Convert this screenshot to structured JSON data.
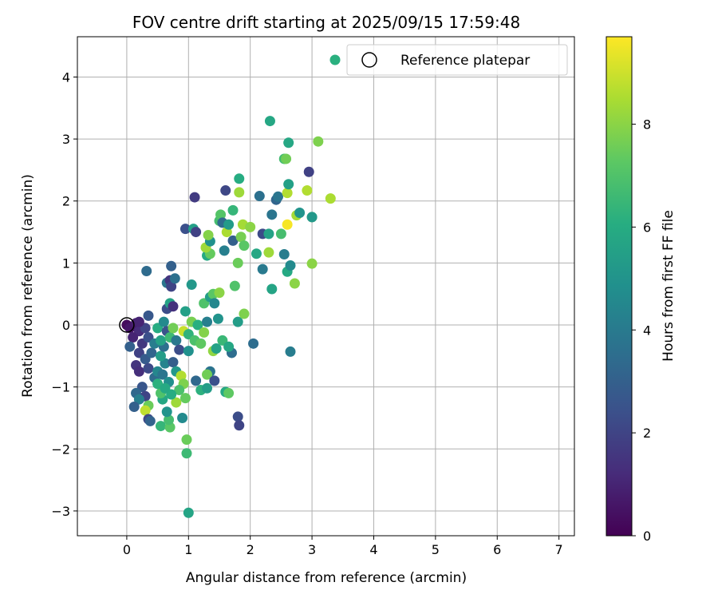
{
  "chart_data": {
    "type": "scatter",
    "title": "FOV centre drift starting at 2025/09/15 17:59:48",
    "xlabel": "Angular distance from reference (arcmin)",
    "ylabel": "Rotation from reference (arcmin)",
    "xlim": [
      -0.8,
      7.25
    ],
    "ylim": [
      -3.4,
      4.65
    ],
    "xticks": [
      0,
      1,
      2,
      3,
      4,
      5,
      6,
      7
    ],
    "yticks": [
      -3,
      -2,
      -1,
      0,
      1,
      2,
      3,
      4
    ],
    "grid": true,
    "legend": {
      "position": "top-right",
      "entries": [
        {
          "label": "",
          "marker": "filled-circle",
          "color": "#2ab07f"
        },
        {
          "label": "Reference platepar",
          "marker": "open-circle",
          "color": "#000000"
        }
      ]
    },
    "colorbar": {
      "label": "Hours from first FF file",
      "colormap": "viridis",
      "range": [
        0,
        9.7
      ],
      "ticks": [
        0,
        2,
        4,
        6,
        8
      ]
    },
    "reference_point": {
      "x": 0,
      "y": 0
    },
    "points": [
      {
        "x": 0.0,
        "y": 0.0,
        "c": 0.3
      },
      {
        "x": 0.05,
        "y": -0.05,
        "c": 0.6
      },
      {
        "x": 0.15,
        "y": 0.03,
        "c": 0.8
      },
      {
        "x": 0.2,
        "y": -0.1,
        "c": 1.2
      },
      {
        "x": 0.1,
        "y": -0.2,
        "c": 1.0
      },
      {
        "x": 0.25,
        "y": -0.3,
        "c": 1.6
      },
      {
        "x": 0.05,
        "y": -0.35,
        "c": 3.0
      },
      {
        "x": 0.3,
        "y": -0.05,
        "c": 2.0
      },
      {
        "x": 0.35,
        "y": -0.2,
        "c": 2.4
      },
      {
        "x": 0.2,
        "y": -0.45,
        "c": 1.9
      },
      {
        "x": 0.3,
        "y": -0.55,
        "c": 2.8
      },
      {
        "x": 0.4,
        "y": -0.45,
        "c": 3.2
      },
      {
        "x": 0.15,
        "y": -0.65,
        "c": 1.5
      },
      {
        "x": 0.2,
        "y": -0.75,
        "c": 1.3
      },
      {
        "x": 0.35,
        "y": -0.7,
        "c": 2.2
      },
      {
        "x": 0.45,
        "y": -0.85,
        "c": 3.4
      },
      {
        "x": 0.25,
        "y": -1.0,
        "c": 2.6
      },
      {
        "x": 0.15,
        "y": -1.1,
        "c": 3.3
      },
      {
        "x": 0.3,
        "y": -1.15,
        "c": 2.0
      },
      {
        "x": 0.2,
        "y": -1.2,
        "c": 4.2
      },
      {
        "x": 0.12,
        "y": -1.32,
        "c": 3.0
      },
      {
        "x": 0.35,
        "y": -1.3,
        "c": 7.5
      },
      {
        "x": 0.3,
        "y": -1.38,
        "c": 8.8
      },
      {
        "x": 0.35,
        "y": -1.52,
        "c": 2.1
      },
      {
        "x": 0.38,
        "y": -1.55,
        "c": 3.1
      },
      {
        "x": 0.55,
        "y": -1.63,
        "c": 6.4
      },
      {
        "x": 0.7,
        "y": -1.65,
        "c": 7.2
      },
      {
        "x": 0.68,
        "y": -1.53,
        "c": 6.8
      },
      {
        "x": 0.65,
        "y": -1.4,
        "c": 5.0
      },
      {
        "x": 0.58,
        "y": -1.2,
        "c": 5.8
      },
      {
        "x": 0.55,
        "y": -1.1,
        "c": 7.0
      },
      {
        "x": 0.5,
        "y": -0.95,
        "c": 6.2
      },
      {
        "x": 0.5,
        "y": -0.75,
        "c": 4.5
      },
      {
        "x": 0.58,
        "y": -0.8,
        "c": 3.8
      },
      {
        "x": 0.62,
        "y": -0.62,
        "c": 4.4
      },
      {
        "x": 0.55,
        "y": -0.5,
        "c": 5.4
      },
      {
        "x": 0.6,
        "y": -0.35,
        "c": 3.6
      },
      {
        "x": 0.45,
        "y": -0.3,
        "c": 4.1
      },
      {
        "x": 0.55,
        "y": -0.25,
        "c": 5.6
      },
      {
        "x": 0.5,
        "y": -0.05,
        "c": 6.0
      },
      {
        "x": 0.6,
        "y": 0.05,
        "c": 4.6
      },
      {
        "x": 0.65,
        "y": -0.1,
        "c": 2.5
      },
      {
        "x": 0.7,
        "y": -0.2,
        "c": 6.6
      },
      {
        "x": 0.75,
        "y": -0.05,
        "c": 7.6
      },
      {
        "x": 0.8,
        "y": -0.25,
        "c": 3.9
      },
      {
        "x": 0.85,
        "y": -0.4,
        "c": 2.3
      },
      {
        "x": 0.75,
        "y": -0.6,
        "c": 2.9
      },
      {
        "x": 0.8,
        "y": -0.75,
        "c": 5.2
      },
      {
        "x": 0.88,
        "y": -0.82,
        "c": 8.6
      },
      {
        "x": 0.92,
        "y": -0.95,
        "c": 7.8
      },
      {
        "x": 0.85,
        "y": -1.05,
        "c": 6.9
      },
      {
        "x": 0.8,
        "y": -1.25,
        "c": 8.3
      },
      {
        "x": 0.95,
        "y": -1.18,
        "c": 7.4
      },
      {
        "x": 0.72,
        "y": -1.12,
        "c": 6.0
      },
      {
        "x": 0.68,
        "y": -0.92,
        "c": 4.8
      },
      {
        "x": 0.62,
        "y": -1.02,
        "c": 5.9
      },
      {
        "x": 0.9,
        "y": -1.5,
        "c": 4.6
      },
      {
        "x": 0.97,
        "y": -1.85,
        "c": 7.5
      },
      {
        "x": 0.97,
        "y": -2.07,
        "c": 6.6
      },
      {
        "x": 1.0,
        "y": -3.03,
        "c": 5.7
      },
      {
        "x": 0.92,
        "y": -0.1,
        "c": 8.9
      },
      {
        "x": 0.95,
        "y": 0.22,
        "c": 5.5
      },
      {
        "x": 1.0,
        "y": -0.15,
        "c": 6.3
      },
      {
        "x": 1.05,
        "y": 0.05,
        "c": 7.7
      },
      {
        "x": 1.0,
        "y": -0.42,
        "c": 4.9
      },
      {
        "x": 1.1,
        "y": -0.25,
        "c": 6.9
      },
      {
        "x": 1.2,
        "y": -0.3,
        "c": 7.3
      },
      {
        "x": 1.15,
        "y": 0.0,
        "c": 6.1
      },
      {
        "x": 1.25,
        "y": -0.12,
        "c": 7.9
      },
      {
        "x": 1.3,
        "y": 0.05,
        "c": 4.2
      },
      {
        "x": 1.4,
        "y": -0.42,
        "c": 8.1
      },
      {
        "x": 1.45,
        "y": -0.38,
        "c": 5.6
      },
      {
        "x": 1.48,
        "y": 0.1,
        "c": 5.0
      },
      {
        "x": 1.55,
        "y": -0.25,
        "c": 6.5
      },
      {
        "x": 1.35,
        "y": -0.75,
        "c": 3.7
      },
      {
        "x": 1.3,
        "y": -0.8,
        "c": 7.6
      },
      {
        "x": 1.2,
        "y": -1.05,
        "c": 6.2
      },
      {
        "x": 1.3,
        "y": -1.02,
        "c": 5.4
      },
      {
        "x": 1.12,
        "y": -0.9,
        "c": 3.3
      },
      {
        "x": 1.42,
        "y": -0.9,
        "c": 2.4
      },
      {
        "x": 1.6,
        "y": -1.08,
        "c": 5.9
      },
      {
        "x": 1.65,
        "y": -1.1,
        "c": 7.3
      },
      {
        "x": 1.7,
        "y": -0.45,
        "c": 3.5
      },
      {
        "x": 1.65,
        "y": -0.35,
        "c": 5.8
      },
      {
        "x": 1.8,
        "y": -1.48,
        "c": 2.3
      },
      {
        "x": 1.82,
        "y": -1.62,
        "c": 2.0
      },
      {
        "x": 1.8,
        "y": 0.05,
        "c": 5.4
      },
      {
        "x": 1.9,
        "y": 0.18,
        "c": 7.8
      },
      {
        "x": 2.05,
        "y": -0.3,
        "c": 3.5
      },
      {
        "x": 2.65,
        "y": -0.43,
        "c": 4.1
      },
      {
        "x": 0.2,
        "y": 0.05,
        "c": 1.0
      },
      {
        "x": 0.35,
        "y": 0.15,
        "c": 2.7
      },
      {
        "x": 0.32,
        "y": 0.87,
        "c": 3.4
      },
      {
        "x": 0.65,
        "y": 0.26,
        "c": 2.3
      },
      {
        "x": 0.7,
        "y": 0.35,
        "c": 5.6
      },
      {
        "x": 0.75,
        "y": 0.3,
        "c": 1.4
      },
      {
        "x": 0.65,
        "y": 0.68,
        "c": 3.8
      },
      {
        "x": 0.7,
        "y": 0.72,
        "c": 1.5
      },
      {
        "x": 0.72,
        "y": 0.62,
        "c": 2.0
      },
      {
        "x": 0.78,
        "y": 0.75,
        "c": 3.6
      },
      {
        "x": 0.72,
        "y": 0.95,
        "c": 3.0
      },
      {
        "x": 1.05,
        "y": 0.65,
        "c": 5.2
      },
      {
        "x": 0.95,
        "y": 1.55,
        "c": 2.4
      },
      {
        "x": 1.08,
        "y": 1.55,
        "c": 5.5
      },
      {
        "x": 1.12,
        "y": 1.5,
        "c": 1.9
      },
      {
        "x": 1.1,
        "y": 2.06,
        "c": 1.7
      },
      {
        "x": 1.25,
        "y": 0.35,
        "c": 7.0
      },
      {
        "x": 1.35,
        "y": 0.45,
        "c": 5.4
      },
      {
        "x": 1.4,
        "y": 0.5,
        "c": 7.2
      },
      {
        "x": 1.42,
        "y": 0.35,
        "c": 4.5
      },
      {
        "x": 1.5,
        "y": 0.52,
        "c": 8.0
      },
      {
        "x": 1.3,
        "y": 1.12,
        "c": 5.9
      },
      {
        "x": 1.35,
        "y": 1.15,
        "c": 7.4
      },
      {
        "x": 1.28,
        "y": 1.25,
        "c": 8.3
      },
      {
        "x": 1.35,
        "y": 1.35,
        "c": 4.9
      },
      {
        "x": 1.32,
        "y": 1.45,
        "c": 7.9
      },
      {
        "x": 1.5,
        "y": 1.68,
        "c": 6.8
      },
      {
        "x": 1.52,
        "y": 1.78,
        "c": 7.1
      },
      {
        "x": 1.55,
        "y": 1.65,
        "c": 3.4
      },
      {
        "x": 1.58,
        "y": 1.2,
        "c": 4.2
      },
      {
        "x": 1.62,
        "y": 1.5,
        "c": 8.5
      },
      {
        "x": 1.65,
        "y": 1.62,
        "c": 5.3
      },
      {
        "x": 1.6,
        "y": 2.17,
        "c": 2.1
      },
      {
        "x": 1.72,
        "y": 1.36,
        "c": 3.0
      },
      {
        "x": 1.72,
        "y": 1.85,
        "c": 6.4
      },
      {
        "x": 1.75,
        "y": 0.63,
        "c": 7.0
      },
      {
        "x": 1.8,
        "y": 1.0,
        "c": 7.5
      },
      {
        "x": 1.82,
        "y": 2.14,
        "c": 8.3
      },
      {
        "x": 1.82,
        "y": 2.36,
        "c": 6.0
      },
      {
        "x": 1.85,
        "y": 1.42,
        "c": 7.7
      },
      {
        "x": 1.88,
        "y": 1.62,
        "c": 8.4
      },
      {
        "x": 1.9,
        "y": 1.28,
        "c": 7.2
      },
      {
        "x": 2.0,
        "y": 1.58,
        "c": 8.0
      },
      {
        "x": 2.1,
        "y": 1.15,
        "c": 5.8
      },
      {
        "x": 2.15,
        "y": 2.08,
        "c": 3.6
      },
      {
        "x": 2.2,
        "y": 0.9,
        "c": 4.0
      },
      {
        "x": 2.2,
        "y": 1.47,
        "c": 2.2
      },
      {
        "x": 2.3,
        "y": 1.47,
        "c": 5.6
      },
      {
        "x": 2.3,
        "y": 1.17,
        "c": 8.3
      },
      {
        "x": 2.35,
        "y": 1.78,
        "c": 3.8
      },
      {
        "x": 2.35,
        "y": 0.58,
        "c": 5.7
      },
      {
        "x": 2.42,
        "y": 2.02,
        "c": 3.2
      },
      {
        "x": 2.45,
        "y": 2.07,
        "c": 3.8
      },
      {
        "x": 2.5,
        "y": 1.47,
        "c": 6.8
      },
      {
        "x": 2.55,
        "y": 1.14,
        "c": 4.1
      },
      {
        "x": 2.55,
        "y": 2.68,
        "c": 6.7
      },
      {
        "x": 2.58,
        "y": 2.68,
        "c": 7.6
      },
      {
        "x": 2.6,
        "y": 2.13,
        "c": 8.6
      },
      {
        "x": 2.6,
        "y": 1.62,
        "c": 9.6
      },
      {
        "x": 2.6,
        "y": 0.86,
        "c": 5.9
      },
      {
        "x": 2.62,
        "y": 2.94,
        "c": 5.8
      },
      {
        "x": 2.62,
        "y": 2.27,
        "c": 5.5
      },
      {
        "x": 2.65,
        "y": 0.96,
        "c": 4.6
      },
      {
        "x": 2.32,
        "y": 3.29,
        "c": 5.8
      },
      {
        "x": 2.72,
        "y": 0.67,
        "c": 8.0
      },
      {
        "x": 2.75,
        "y": 1.77,
        "c": 8.4
      },
      {
        "x": 2.8,
        "y": 1.81,
        "c": 5.0
      },
      {
        "x": 2.92,
        "y": 2.17,
        "c": 8.6
      },
      {
        "x": 2.95,
        "y": 2.47,
        "c": 1.9
      },
      {
        "x": 3.0,
        "y": 1.74,
        "c": 7.1
      },
      {
        "x": 3.0,
        "y": 1.74,
        "c": 5.2
      },
      {
        "x": 3.0,
        "y": 0.99,
        "c": 8.0
      },
      {
        "x": 3.1,
        "y": 2.96,
        "c": 7.8
      },
      {
        "x": 3.3,
        "y": 2.04,
        "c": 8.5
      }
    ]
  }
}
